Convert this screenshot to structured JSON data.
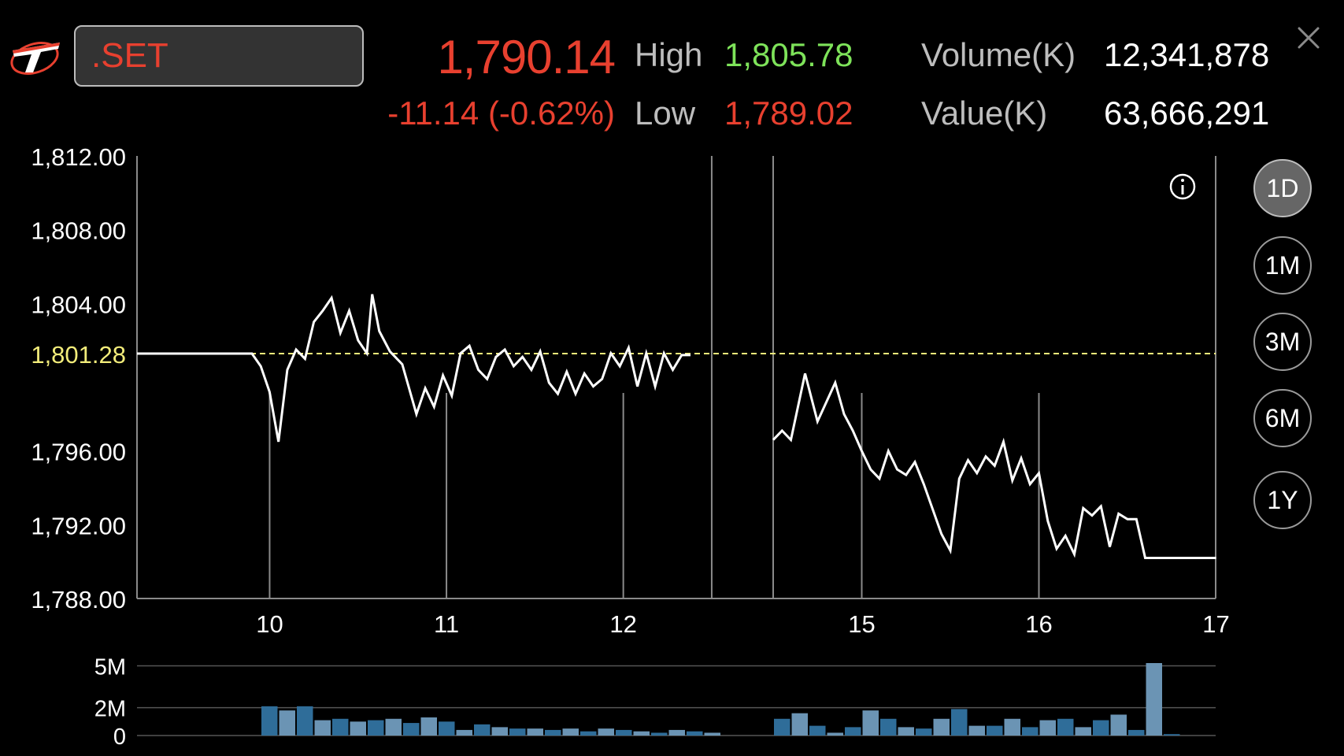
{
  "header": {
    "symbol": ".SET",
    "price": "1,790.14",
    "change": "-11.14 (-0.62%)",
    "high_label": "High",
    "high_value": "1,805.78",
    "low_label": "Low",
    "low_value": "1,789.02",
    "volume_label": "Volume(K)",
    "volume_value": "12,341,878",
    "value_label": "Value(K)",
    "value_value": "63,666,291",
    "close_icon": "close-icon",
    "info_icon": "info-icon"
  },
  "periods": [
    {
      "label": "1D",
      "active": true
    },
    {
      "label": "1M",
      "active": false
    },
    {
      "label": "3M",
      "active": false
    },
    {
      "label": "6M",
      "active": false
    },
    {
      "label": "1Y",
      "active": false
    }
  ],
  "colors": {
    "down": "#e8402f",
    "up": "#7ee35a",
    "prev_close": "#f2ec7a",
    "line": "#ffffff",
    "vol_a": "#2f6d99",
    "vol_b": "#6b94b4"
  },
  "chart_data": [
    {
      "type": "line",
      "prev_close": 1801.28,
      "prev_close_label": "1,801.28",
      "ylim": [
        1788,
        1812
      ],
      "y_ticks": [
        1812,
        1808,
        1804,
        1796,
        1792,
        1788
      ],
      "y_tick_labels": [
        "1,812.00",
        "1,808.00",
        "1,804.00",
        "1,796.00",
        "1,792.00",
        "1,788.00"
      ],
      "x_ticks": [
        10,
        11,
        12,
        15,
        16,
        17
      ],
      "x_tick_labels": [
        "10",
        "11",
        "12",
        "15",
        "16",
        "17"
      ],
      "morning_session": [
        [
          9.25,
          1801.28
        ],
        [
          9.9,
          1801.28
        ],
        [
          9.95,
          1800.6
        ],
        [
          10.0,
          1799.2
        ],
        [
          10.05,
          1796.5
        ],
        [
          10.1,
          1800.4
        ],
        [
          10.15,
          1801.5
        ],
        [
          10.2,
          1801.0
        ],
        [
          10.25,
          1803.0
        ],
        [
          10.3,
          1803.6
        ],
        [
          10.35,
          1804.3
        ],
        [
          10.4,
          1802.4
        ],
        [
          10.45,
          1803.6
        ],
        [
          10.5,
          1802.0
        ],
        [
          10.55,
          1801.3
        ],
        [
          10.58,
          1804.5
        ],
        [
          10.62,
          1802.5
        ],
        [
          10.68,
          1801.4
        ],
        [
          10.75,
          1800.7
        ],
        [
          10.83,
          1798.0
        ],
        [
          10.88,
          1799.4
        ],
        [
          10.93,
          1798.4
        ],
        [
          10.98,
          1800.1
        ],
        [
          11.03,
          1799.0
        ],
        [
          11.08,
          1801.3
        ],
        [
          11.13,
          1801.7
        ],
        [
          11.18,
          1800.4
        ],
        [
          11.23,
          1799.9
        ],
        [
          11.28,
          1801.1
        ],
        [
          11.33,
          1801.5
        ],
        [
          11.38,
          1800.6
        ],
        [
          11.43,
          1801.1
        ],
        [
          11.48,
          1800.4
        ],
        [
          11.53,
          1801.4
        ],
        [
          11.58,
          1799.7
        ],
        [
          11.63,
          1799.1
        ],
        [
          11.68,
          1800.3
        ],
        [
          11.73,
          1799.1
        ],
        [
          11.78,
          1800.2
        ],
        [
          11.83,
          1799.5
        ],
        [
          11.88,
          1799.9
        ],
        [
          11.93,
          1801.3
        ],
        [
          11.98,
          1800.6
        ],
        [
          12.03,
          1801.6
        ],
        [
          12.08,
          1799.5
        ],
        [
          12.13,
          1801.3
        ],
        [
          12.18,
          1799.5
        ],
        [
          12.23,
          1801.3
        ],
        [
          12.28,
          1800.4
        ],
        [
          12.33,
          1801.2
        ],
        [
          12.38,
          1801.2
        ]
      ],
      "afternoon_session": [
        [
          14.5,
          1796.6
        ],
        [
          14.55,
          1797.1
        ],
        [
          14.6,
          1796.6
        ],
        [
          14.68,
          1800.2
        ],
        [
          14.75,
          1797.6
        ],
        [
          14.85,
          1799.7
        ],
        [
          14.9,
          1798.0
        ],
        [
          14.95,
          1797.1
        ],
        [
          15.0,
          1796.0
        ],
        [
          15.05,
          1795.0
        ],
        [
          15.1,
          1794.5
        ],
        [
          15.15,
          1796.0
        ],
        [
          15.2,
          1795.0
        ],
        [
          15.25,
          1794.7
        ],
        [
          15.3,
          1795.4
        ],
        [
          15.35,
          1794.2
        ],
        [
          15.45,
          1791.5
        ],
        [
          15.5,
          1790.6
        ],
        [
          15.55,
          1794.5
        ],
        [
          15.6,
          1795.5
        ],
        [
          15.65,
          1794.8
        ],
        [
          15.7,
          1795.7
        ],
        [
          15.75,
          1795.2
        ],
        [
          15.8,
          1796.5
        ],
        [
          15.85,
          1794.4
        ],
        [
          15.9,
          1795.6
        ],
        [
          15.95,
          1794.2
        ],
        [
          16.0,
          1794.8
        ],
        [
          16.05,
          1792.2
        ],
        [
          16.1,
          1790.7
        ],
        [
          16.15,
          1791.4
        ],
        [
          16.2,
          1790.4
        ],
        [
          16.25,
          1792.9
        ],
        [
          16.3,
          1792.5
        ],
        [
          16.35,
          1793.0
        ],
        [
          16.4,
          1790.8
        ],
        [
          16.45,
          1792.6
        ],
        [
          16.5,
          1792.3
        ],
        [
          16.55,
          1792.3
        ],
        [
          16.6,
          1790.2
        ],
        [
          17.0,
          1790.2
        ]
      ]
    },
    {
      "type": "bar",
      "ylim": [
        0,
        5.2
      ],
      "y_ticks": [
        0,
        2,
        5
      ],
      "y_tick_labels": [
        "0",
        "2M",
        "5M"
      ],
      "unit": "M",
      "morning_volumes": [
        2.1,
        1.8,
        2.1,
        1.1,
        1.2,
        1.0,
        1.1,
        1.2,
        0.9,
        1.3,
        1.0,
        0.4,
        0.8,
        0.6,
        0.5,
        0.5,
        0.4,
        0.5,
        0.3,
        0.5,
        0.4,
        0.3,
        0.2,
        0.4,
        0.3,
        0.2
      ],
      "afternoon_volumes": [
        1.2,
        1.6,
        0.7,
        0.2,
        0.6,
        1.8,
        1.2,
        0.6,
        0.5,
        1.2,
        1.9,
        0.7,
        0.7,
        1.2,
        0.6,
        1.1,
        1.2,
        0.6,
        1.1,
        1.5,
        0.4,
        5.2,
        0.1
      ]
    }
  ]
}
